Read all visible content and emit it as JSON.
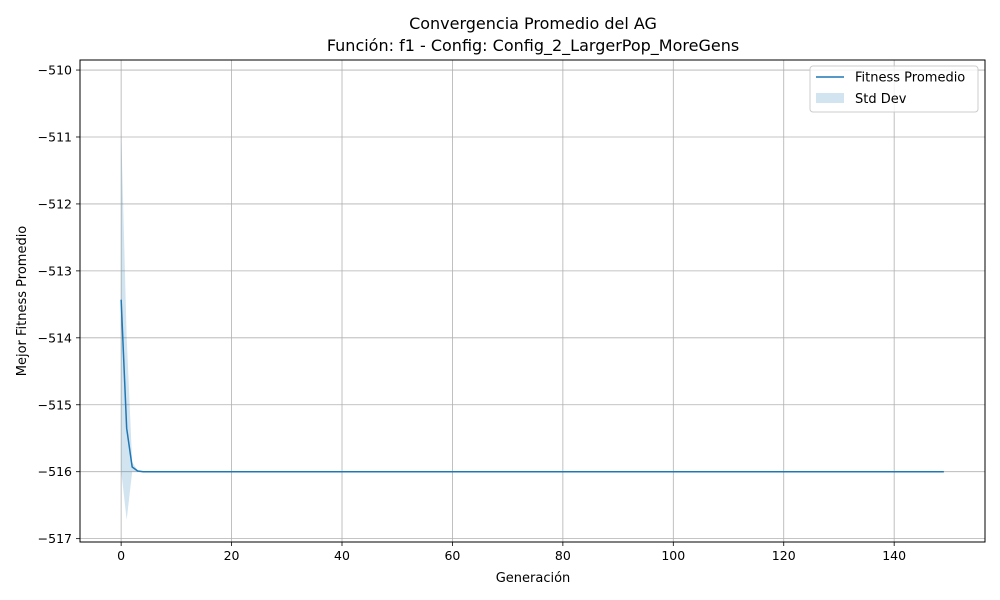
{
  "chart_data": {
    "type": "line",
    "title": "Convergencia Promedio del AG",
    "subtitle": "Función: f1 - Config: Config_2_LargerPop_MoreGens",
    "xlabel": "Generación",
    "ylabel": "Mejor Fitness Promedio",
    "xlim": [
      -7.45,
      156.45
    ],
    "ylim": [
      -517.05,
      -509.85
    ],
    "xticks": [
      0,
      20,
      40,
      60,
      80,
      100,
      120,
      140
    ],
    "xtick_labels": [
      "0",
      "20",
      "40",
      "60",
      "80",
      "100",
      "120",
      "140"
    ],
    "yticks": [
      -517,
      -516,
      -515,
      -514,
      -513,
      -512,
      -511,
      -510
    ],
    "ytick_labels": [
      "−517",
      "−516",
      "−515",
      "−514",
      "−513",
      "−512",
      "−511",
      "−510"
    ],
    "grid": true,
    "legend_position": "top-right",
    "legend": [
      {
        "label": "Fitness Promedio",
        "kind": "line"
      },
      {
        "label": "Std Dev",
        "kind": "band"
      }
    ],
    "colors": {
      "line": "#1f77b4",
      "band": "#1f77b4",
      "band_opacity": 0.2,
      "grid": "#b0b0b0"
    },
    "series": [
      {
        "name": "Fitness Promedio",
        "x_range": [
          0,
          149
        ],
        "head_x": [
          0,
          1,
          2,
          3,
          4,
          5
        ],
        "head_y": [
          -513.43,
          -515.35,
          -515.93,
          -515.99,
          -516.0,
          -516.0
        ],
        "tail_y": -516.0,
        "std_head": [
          2.55,
          1.37,
          0.07,
          0.01,
          0.0,
          0.0
        ],
        "std_tail": 0.0
      }
    ]
  }
}
